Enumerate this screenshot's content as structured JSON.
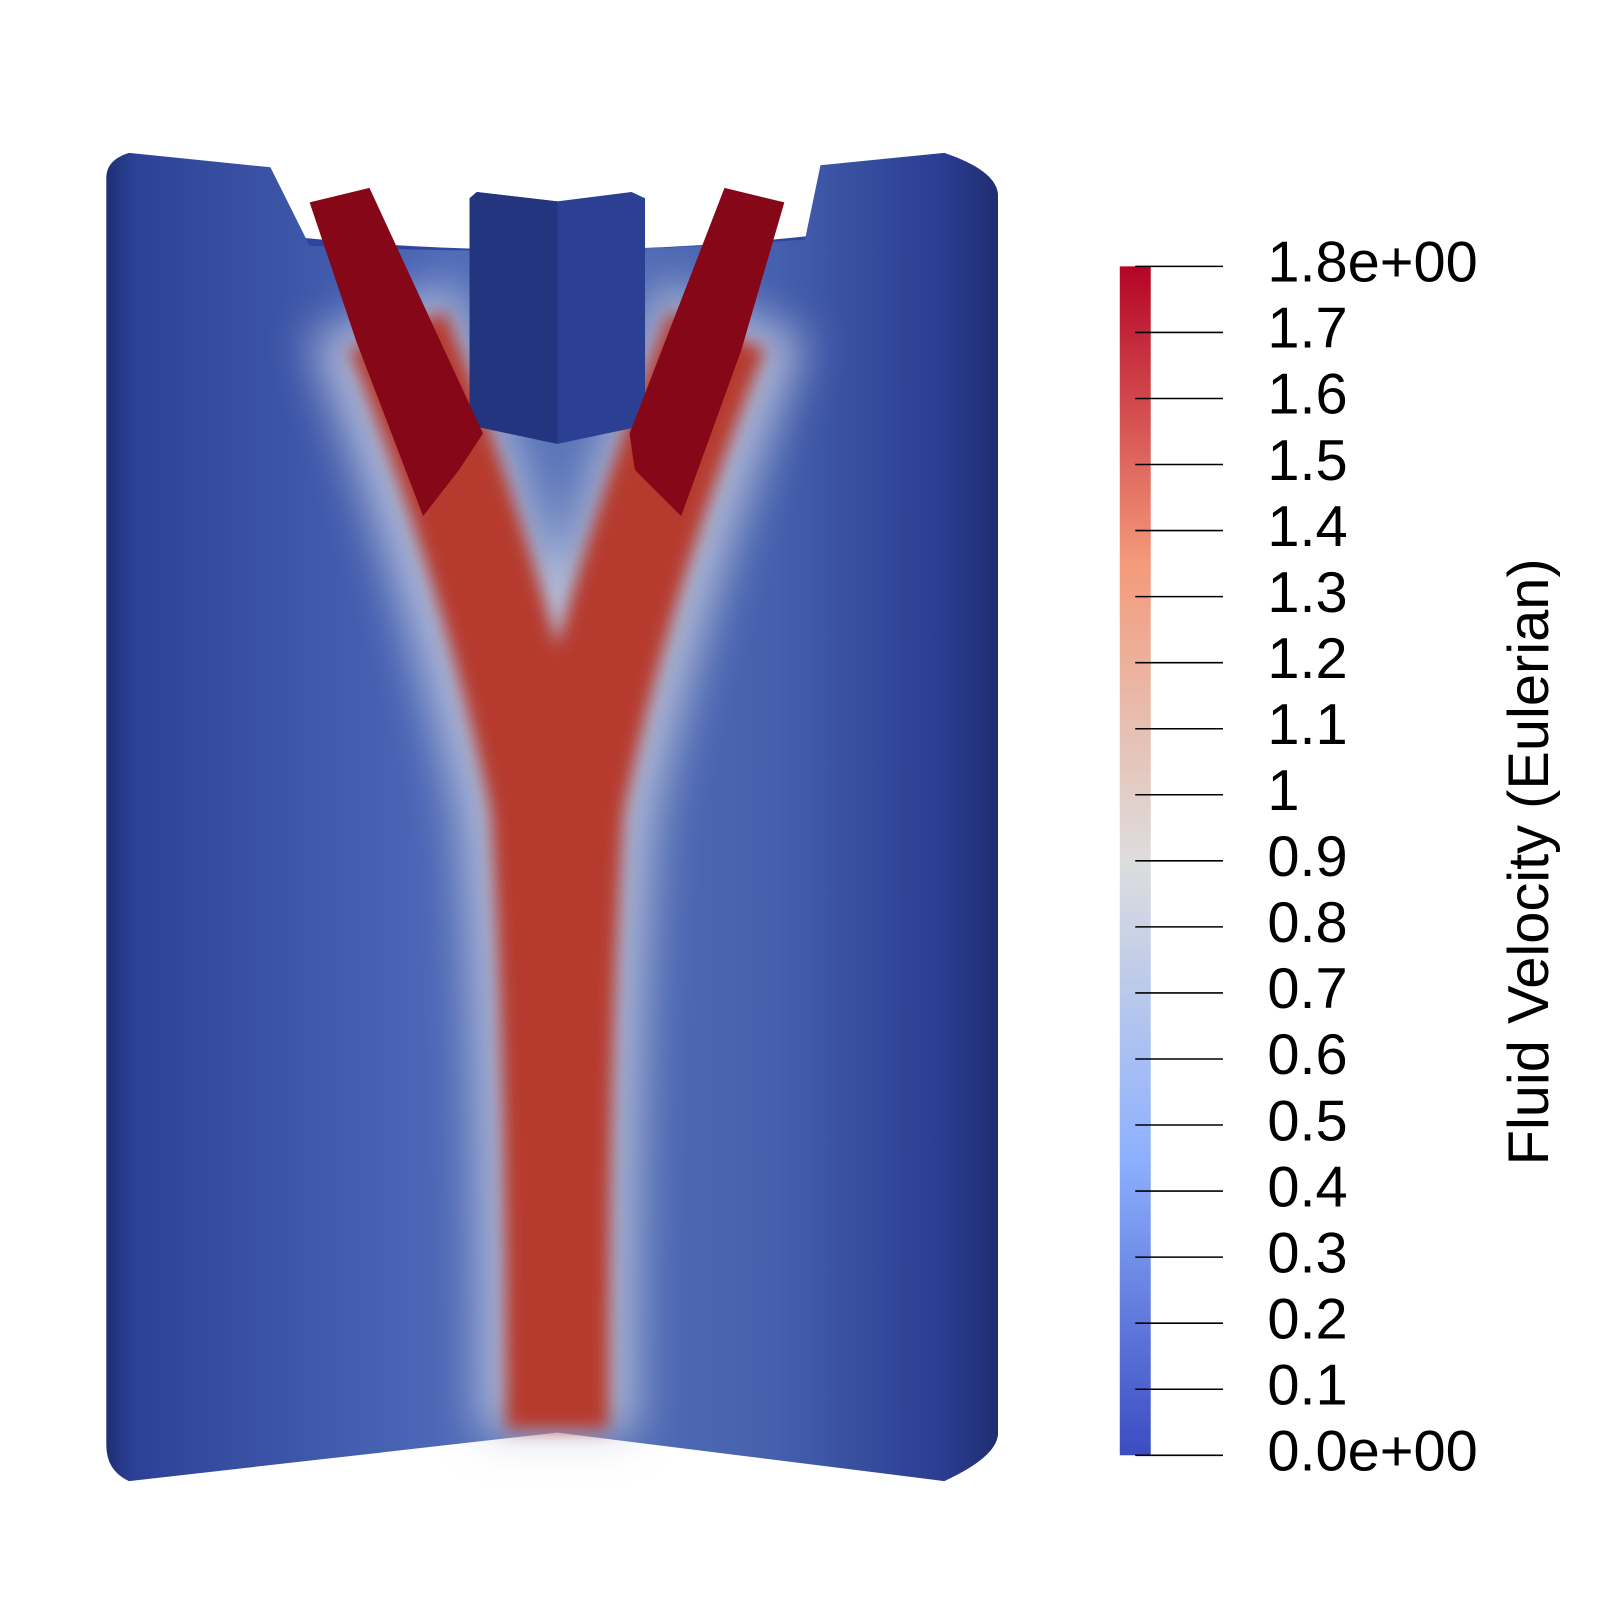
{
  "chart_data": {
    "type": "colorbar",
    "title": "Fluid Velocity (Eulerian)",
    "clim": [
      0,
      1.8
    ],
    "cticks": [
      {
        "value": 0,
        "label": "0.0e+00"
      },
      0.1,
      0.2,
      0.3,
      0.4,
      0.5,
      0.6,
      0.7,
      0.8,
      0.9,
      1,
      1.1,
      1.2,
      1.3,
      1.4,
      1.5,
      1.6,
      1.7,
      {
        "value": 1.8,
        "label": "1.8e+00"
      }
    ],
    "colormap": [
      "#3b4cc0",
      "#8db0fe",
      "#dddddd",
      "#f49a7b",
      "#b40426"
    ]
  }
}
